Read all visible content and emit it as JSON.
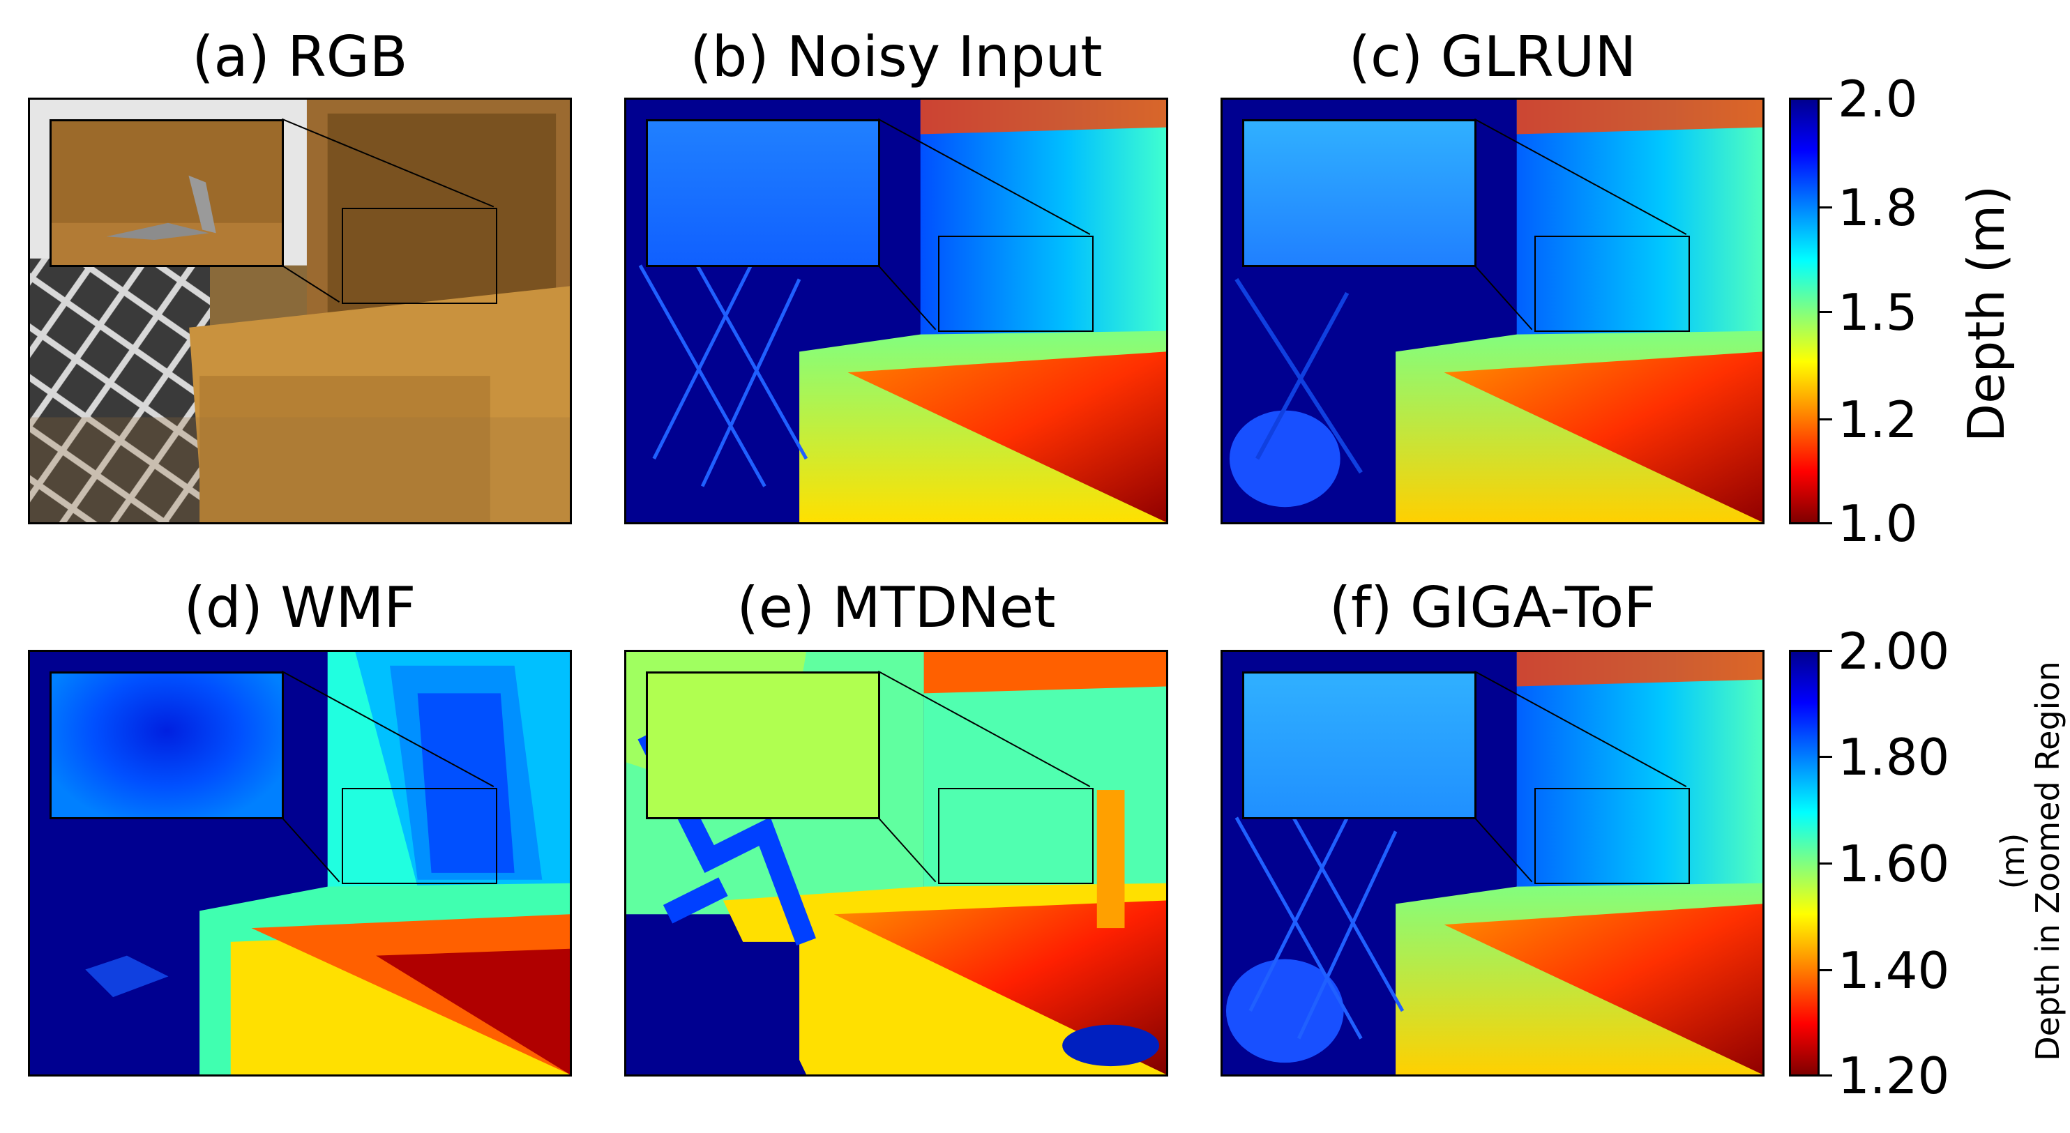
{
  "panels": {
    "a": {
      "title": "(a) RGB"
    },
    "b": {
      "title": "(b) Noisy Input"
    },
    "c": {
      "title": "(c) GLRUN"
    },
    "d": {
      "title": "(d) WMF"
    },
    "e": {
      "title": "(e) MTDNet"
    },
    "f": {
      "title": "(f) GIGA-ToF"
    }
  },
  "colorbar_top": {
    "label": "Depth (m)",
    "ticks": [
      "2.0",
      "1.8",
      "1.5",
      "1.2",
      "1.0"
    ],
    "range": [
      1.0,
      2.0
    ],
    "colormap": "jet"
  },
  "colorbar_bottom": {
    "label_line1": "Depth in Zoomed Region",
    "label_line2": "(m)",
    "ticks": [
      "2.00",
      "1.80",
      "1.60",
      "1.40",
      "1.20"
    ],
    "range": [
      1.2,
      2.0
    ],
    "colormap": "jet"
  }
}
